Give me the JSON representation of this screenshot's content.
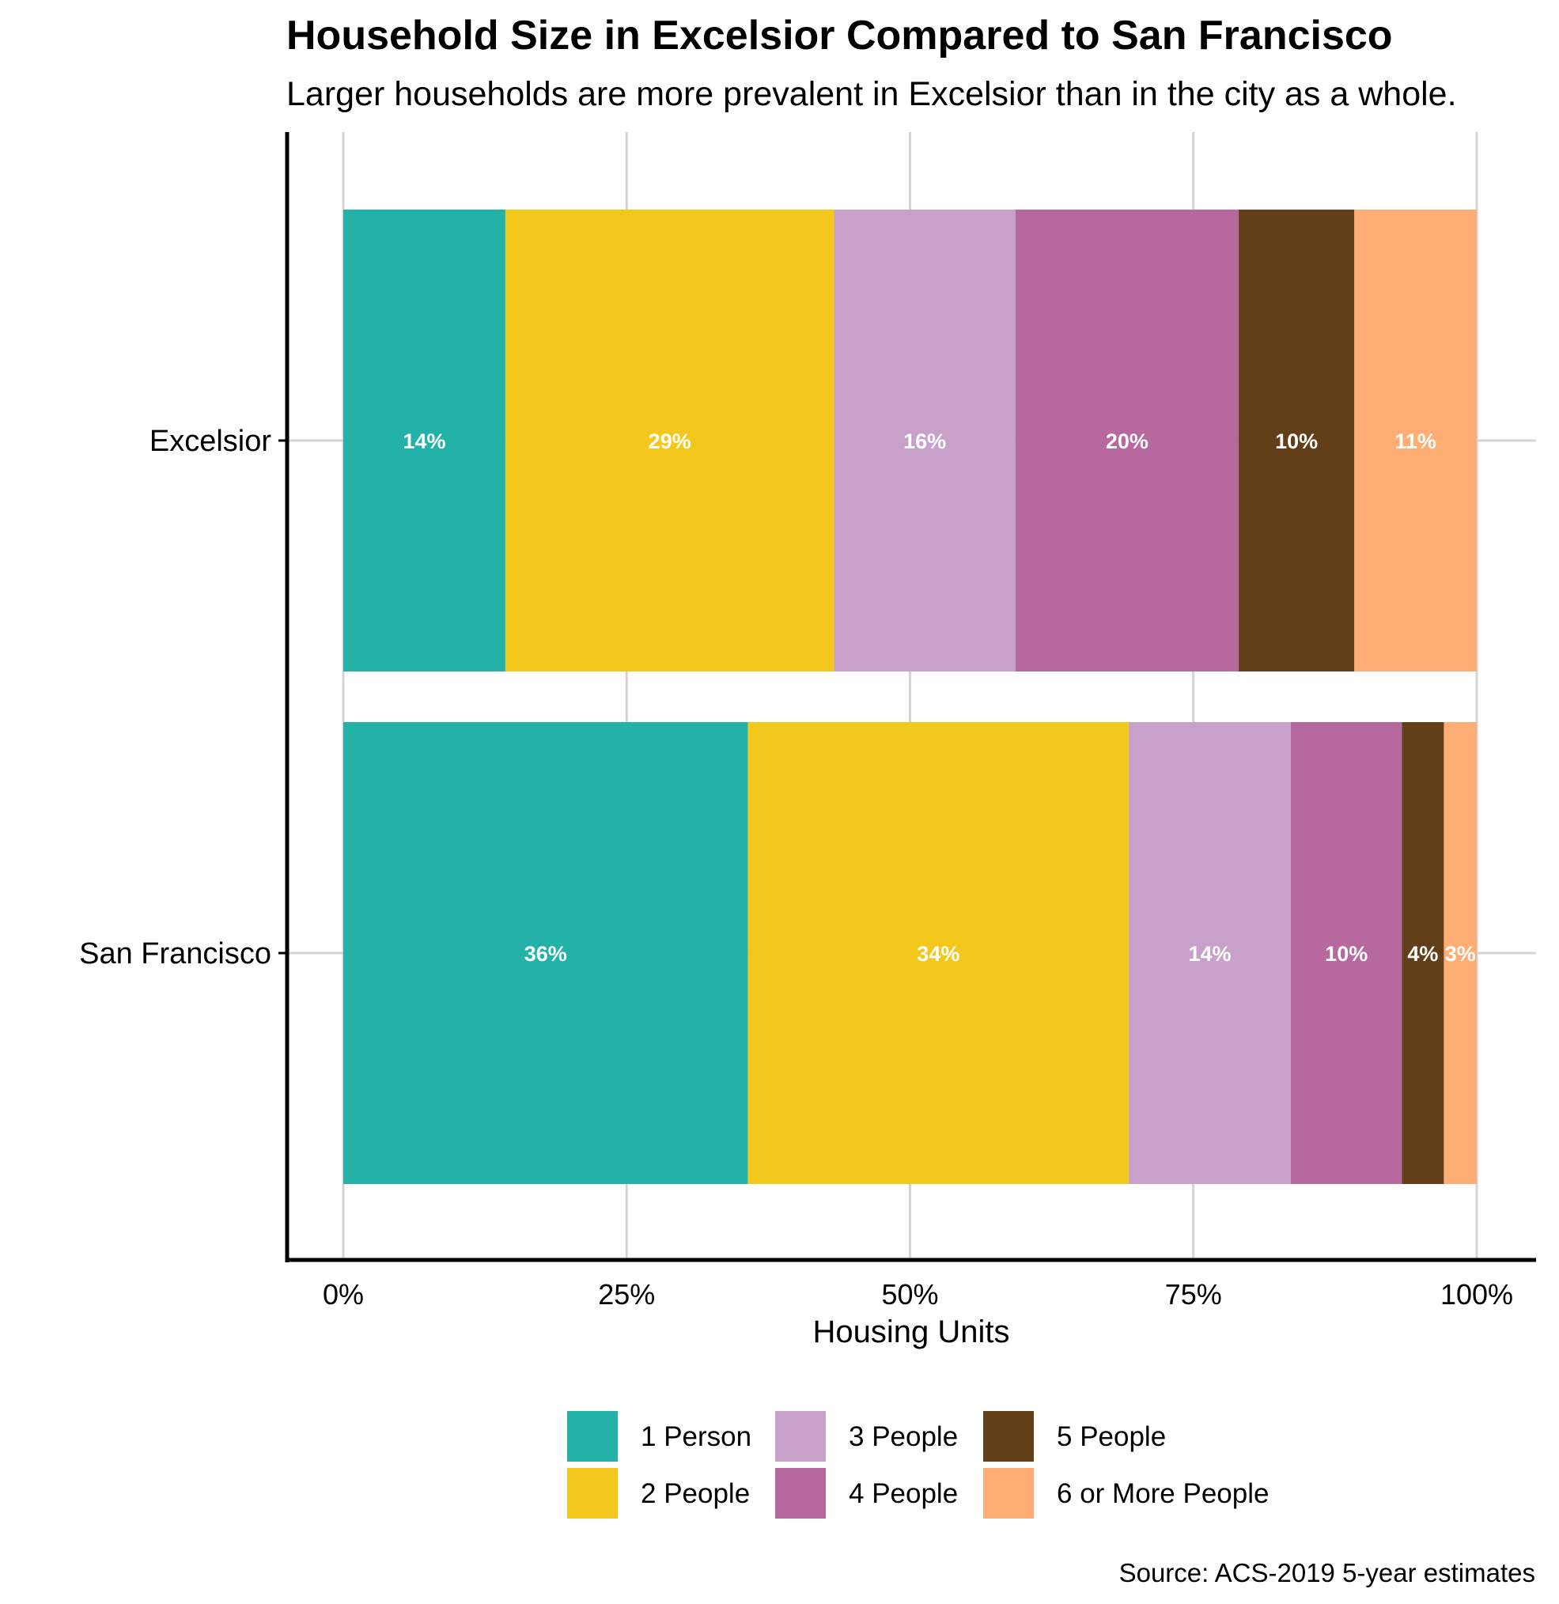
{
  "chart_data": {
    "type": "bar",
    "orientation": "horizontal",
    "stacked": true,
    "title": "Household Size in Excelsior Compared to San Francisco",
    "subtitle": "Larger households are more prevalent in Excelsior than in the city as a whole.",
    "xlabel": "Housing Units",
    "ylabel": "",
    "xlim": [
      0,
      1
    ],
    "x_ticks": [
      0,
      0.25,
      0.5,
      0.75,
      1
    ],
    "x_tick_labels": [
      "0%",
      "25%",
      "50%",
      "75%",
      "100%"
    ],
    "grid": true,
    "legend_position": "bottom",
    "caption": "Source: ACS-2019 5-year estimates",
    "categories": [
      "Excelsior",
      "San Francisco"
    ],
    "series": [
      {
        "name": "1 Person",
        "color": "#22B2A8",
        "values": [
          0.143,
          0.357
        ],
        "labels": [
          "14%",
          "36%"
        ]
      },
      {
        "name": "2 People",
        "color": "#F4C71C",
        "values": [
          0.29,
          0.336
        ],
        "labels": [
          "29%",
          "34%"
        ]
      },
      {
        "name": "3 People",
        "color": "#C8A1CA",
        "values": [
          0.16,
          0.143
        ],
        "labels": [
          "16%",
          "14%"
        ]
      },
      {
        "name": "4 People",
        "color": "#B6689F",
        "values": [
          0.197,
          0.098
        ],
        "labels": [
          "20%",
          "10%"
        ]
      },
      {
        "name": "5 People",
        "color": "#623F18",
        "values": [
          0.102,
          0.037
        ],
        "labels": [
          "10%",
          "4%"
        ]
      },
      {
        "name": "6 or More People",
        "color": "#FEAE75",
        "values": [
          0.108,
          0.029
        ],
        "labels": [
          "11%",
          "3%"
        ]
      }
    ]
  }
}
